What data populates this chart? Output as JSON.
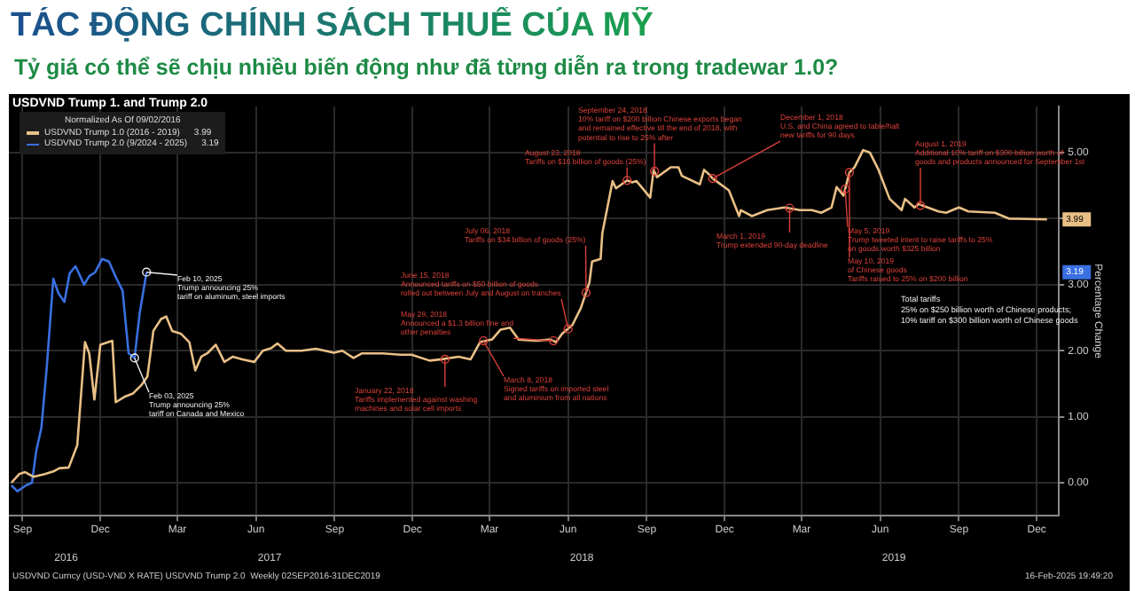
{
  "chart_data": {
    "type": "line",
    "title": "TÁC ĐỘNG CHÍNH SÁCH THUẾ CỦA MỸ",
    "subtitle": "Tỷ giá có thể sẽ chịu nhiều biến động như đã từng diễn ra trong tradewar 1.0?",
    "ylabel": "Percentage Change",
    "legend_title": "Normalized As Of 09/02/2016",
    "legend": "top left",
    "grid": true,
    "marker": "none",
    "line_style": "solid",
    "xlim": [
      "2016-08-30",
      "2020-01-10"
    ],
    "xticks": [
      {
        "value": "2016-09-15",
        "label": "Sep"
      },
      {
        "value": "2016-12-15",
        "label": "Dec"
      },
      {
        "value": "2017-03-15",
        "label": "Mar"
      },
      {
        "value": "2017-06-15",
        "label": "Jun"
      },
      {
        "value": "2017-09-15",
        "label": "Sep"
      },
      {
        "value": "2017-12-15",
        "label": "Dec"
      },
      {
        "value": "2018-03-15",
        "label": "Mar"
      },
      {
        "value": "2018-06-15",
        "label": "Jun"
      },
      {
        "value": "2018-09-15",
        "label": "Sep"
      },
      {
        "value": "2018-12-15",
        "label": "Dec"
      },
      {
        "value": "2019-03-15",
        "label": "Mar"
      },
      {
        "value": "2019-06-15",
        "label": "Jun"
      },
      {
        "value": "2019-09-15",
        "label": "Sep"
      },
      {
        "value": "2019-12-15",
        "label": "Dec"
      }
    ],
    "x2lim": [
      "2016-08-30",
      "2020-01-10"
    ],
    "x2ticks": [
      {
        "value": "2016-11-05",
        "label": "2016"
      },
      {
        "value": "2017-07-01",
        "label": "2017"
      },
      {
        "value": "2018-07-01",
        "label": "2018"
      },
      {
        "value": "2019-07-01",
        "label": "2019"
      }
    ],
    "ylim": [
      -0.5,
      5.7
    ],
    "yticks": [
      {
        "value": 0,
        "label": "0.00"
      },
      {
        "value": 1,
        "label": "1.00"
      },
      {
        "value": 2,
        "label": "2.00"
      },
      {
        "value": 3,
        "label": "3.00"
      },
      {
        "value": 4,
        "label": null
      },
      {
        "value": 5,
        "label": "5.00"
      }
    ],
    "series": [
      {
        "name": "USDVND Trump 1.0 (2016 - 2019)",
        "color": "#e9bf86",
        "x": [
          "2016-09-02",
          "2016-09-11",
          "2016-09-18",
          "2016-09-28",
          "2016-10-11",
          "2016-10-21",
          "2016-10-28",
          "2016-11-08",
          "2016-11-18",
          "2016-11-27",
          "2016-12-02",
          "2016-12-08",
          "2016-12-15",
          "2016-12-29",
          "2017-01-02",
          "2017-01-12",
          "2017-01-22",
          "2017-02-01",
          "2017-02-08",
          "2017-02-15",
          "2017-02-24",
          "2017-03-02",
          "2017-03-09",
          "2017-03-19",
          "2017-03-29",
          "2017-04-05",
          "2017-04-12",
          "2017-04-19",
          "2017-04-29",
          "2017-05-09",
          "2017-05-19",
          "2017-05-30",
          "2017-06-13",
          "2017-06-23",
          "2017-07-03",
          "2017-07-10",
          "2017-07-20",
          "2017-08-07",
          "2017-08-24",
          "2017-09-14",
          "2017-09-24",
          "2017-10-07",
          "2017-10-17",
          "2017-11-10",
          "2017-12-01",
          "2017-12-14",
          "2018-01-04",
          "2018-01-18",
          "2018-02-07",
          "2018-02-21",
          "2018-03-04",
          "2018-03-18",
          "2018-03-28",
          "2018-04-08",
          "2018-04-18",
          "2018-05-09",
          "2018-05-25",
          "2018-06-01",
          "2018-06-08",
          "2018-06-20",
          "2018-06-30",
          "2018-07-10",
          "2018-07-13",
          "2018-07-23",
          "2018-07-25",
          "2018-08-06",
          "2018-08-10",
          "2018-08-23",
          "2018-08-29",
          "2018-09-03",
          "2018-09-19",
          "2018-09-23",
          "2018-09-27",
          "2018-10-13",
          "2018-10-22",
          "2018-10-26",
          "2018-11-16",
          "2018-11-21",
          "2018-11-27",
          "2018-12-01",
          "2018-12-20",
          "2019-01-01",
          "2019-01-03",
          "2019-01-16",
          "2019-02-03",
          "2019-02-23",
          "2019-03-13",
          "2019-03-27",
          "2019-04-07",
          "2019-04-19",
          "2019-04-25",
          "2019-05-03",
          "2019-05-10",
          "2019-05-16",
          "2019-05-26",
          "2019-06-03",
          "2019-06-13",
          "2019-06-26",
          "2019-07-10",
          "2019-07-14",
          "2019-07-25",
          "2019-07-30",
          "2019-08-22",
          "2019-08-31",
          "2019-09-15",
          "2019-09-26",
          "2019-10-27",
          "2019-11-13",
          "2019-11-22",
          "2019-12-27"
        ],
        "values": [
          0,
          0.13,
          0.16,
          0.09,
          0.13,
          0.17,
          0.22,
          0.23,
          0.57,
          2.13,
          1.96,
          1.26,
          2.09,
          2.15,
          1.22,
          1.3,
          1.35,
          1.48,
          1.61,
          2.3,
          2.48,
          2.52,
          2.3,
          2.26,
          2.13,
          1.7,
          1.91,
          1.96,
          2.09,
          1.83,
          1.91,
          1.87,
          1.83,
          2.0,
          2.04,
          2.11,
          2.0,
          2.0,
          2.03,
          1.97,
          2.0,
          1.89,
          1.96,
          1.96,
          1.94,
          1.94,
          1.85,
          1.87,
          1.91,
          1.87,
          2.13,
          2.17,
          2.32,
          2.35,
          2.17,
          2.15,
          2.17,
          2.13,
          2.26,
          2.39,
          2.65,
          3.04,
          3.35,
          3.39,
          3.78,
          4.57,
          4.46,
          4.58,
          4.55,
          4.57,
          4.32,
          4.74,
          4.63,
          4.78,
          4.78,
          4.65,
          4.52,
          4.74,
          4.67,
          4.61,
          4.43,
          4.04,
          4.13,
          4.04,
          4.13,
          4.17,
          4.13,
          4.13,
          4.09,
          4.17,
          4.48,
          4.35,
          4.7,
          4.78,
          5.04,
          5.0,
          4.74,
          4.3,
          4.13,
          4.3,
          4.17,
          4.22,
          4.11,
          4.09,
          4.17,
          4.11,
          4.09,
          4.0,
          4.0,
          3.99
        ]
      },
      {
        "name": "USDVND Trump 2.0 (9/2024 - 2025)",
        "color": "#3a6fe0",
        "x": [
          "2016-09-02",
          "2016-09-09",
          "2016-09-19",
          "2016-09-26",
          "2016-10-01",
          "2016-10-07",
          "2016-10-13",
          "2016-10-21",
          "2016-10-27",
          "2016-11-03",
          "2016-11-09",
          "2016-11-16",
          "2016-11-26",
          "2016-12-02",
          "2016-12-09",
          "2016-12-17",
          "2016-12-25",
          "2017-01-03",
          "2017-01-10",
          "2017-01-17",
          "2017-01-24",
          "2017-01-30",
          "2017-02-07"
        ],
        "values": [
          -0.04,
          -0.13,
          -0.04,
          0,
          0.48,
          0.83,
          1.7,
          3.09,
          2.87,
          2.74,
          3.17,
          3.28,
          3.0,
          3.13,
          3.19,
          3.39,
          3.35,
          3.09,
          2.91,
          1.96,
          1.89,
          2.57,
          3.19
        ]
      }
    ],
    "annotations": [
      "USDVND Trump 1. and Trump 2.0",
      {
        "text": "Feb 10, 2025\nTrump announcing 25%\ntariff on aluminum, steel imports",
        "x": "2017-02-07",
        "y": 3.19
      },
      {
        "text": "Feb 03, 2025\nTrump announcing 25%\ntariff on Canada and Mexico",
        "x": "2017-01-24",
        "y": 1.89
      },
      {
        "text": "January 22, 2018\nTariffs implemented against washing\nmachines and solar cell imports",
        "x": "2018-01-22",
        "y": 1.87
      },
      {
        "text": "March 8, 2018\nSigned tariffs on imported steel\nand aluminium from all nations",
        "x": "2018-03-08",
        "y": 2.15
      },
      {
        "text": "May 29, 2018\nAnnounced a $1.3 billion fine and\nother penalties",
        "x": "2018-05-29",
        "y": 2.15
      },
      {
        "text": "June 15, 2018\nAnnounced tariffs on $50 billion of goods\nrolled out between July and August on tranches",
        "x": "2018-06-15",
        "y": 2.33
      },
      {
        "text": "July 06, 2018\nTariffs on $34 billion of goods (25%)",
        "x": "2018-07-06",
        "y": 2.88
      },
      {
        "text": "August 23, 2018\nTariffs on $16 billion of goods (25%)",
        "x": "2018-08-23",
        "y": 4.58
      },
      {
        "text": "September 24, 2018\n10% tariff on $200 billion Chinese exports began\nand remained effective till the end of 2018, with\npotential to rise to 25% after",
        "x": "2018-09-24",
        "y": 4.72
      },
      {
        "text": "December 1, 2018\nU.S. and China agreed to table/halt\nnew tariffs for 90 days",
        "x": "2018-12-01",
        "y": 4.61
      },
      {
        "text": "March 1, 2019\nTrump extended 90-day deadline",
        "x": "2019-03-01",
        "y": 4.16
      },
      {
        "text": "May 5, 2019\nTrump tweeted intent to raise tariffs to 25%\non goods worth $325 billion",
        "x": "2019-05-05",
        "y": 4.45
      },
      {
        "text": "May 10, 2019\nof Chinese goods\nTariffs raised to 25% on $200 billion",
        "x": "2019-05-10",
        "y": 4.7
      },
      {
        "text": "August 1, 2019\nAdditional 10% tariff on $300 billion worth of\ngoods and products announced for September 1st",
        "x": "2019-08-01",
        "y": 4.2
      },
      "Total tariffs\n25% on $250 billion worth of Chinese products;\n10% tariff on $300 billion worth of Chinese goods",
      "USDVND Curncy (USD-VND X RATE) USDVND Trump 2.0  Weekly 02SEP2016-31DEC2019",
      "16-Feb-2025 19:49:20",
      "3.99",
      "3.19"
    ]
  }
}
